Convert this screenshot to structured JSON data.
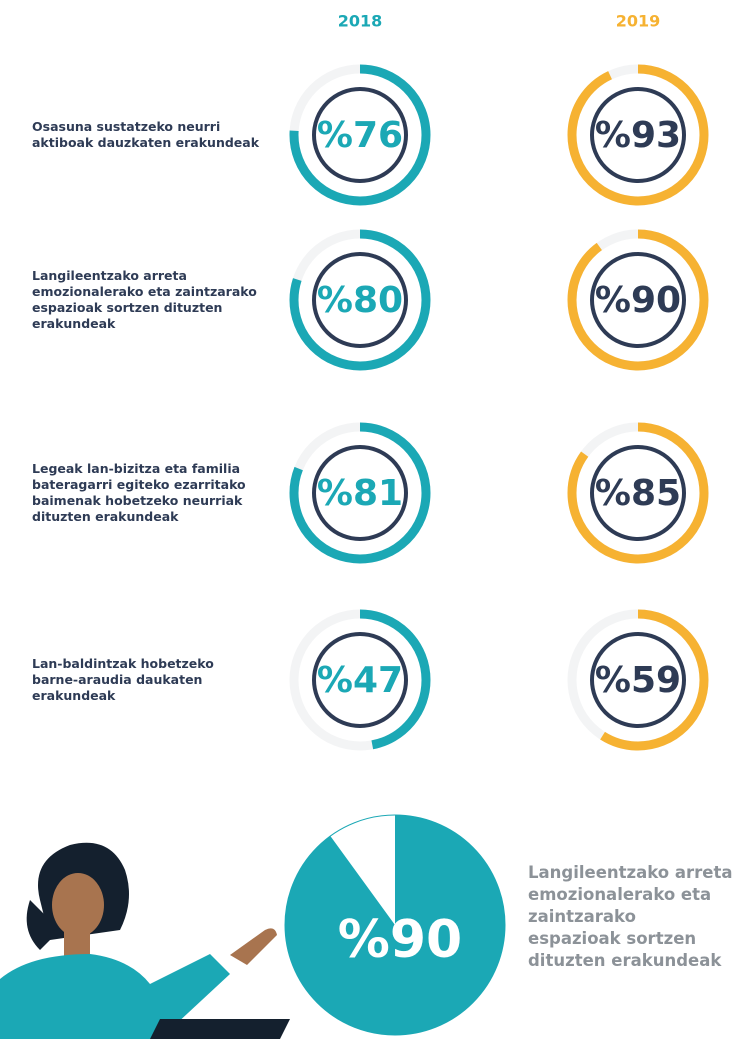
{
  "chart_data": [
    {
      "type": "radial",
      "categories": [
        "Osasuna sustatzeko neurri aktiboak dauzkaten erakundeak",
        "Langileentzako arreta emozionalerako eta zaintzarako espazioak sortzen dituzten erakundeak",
        "Legeak lan-bizitza eta familia bateragarri egiteko ezarritako baimenak hobetzeko neurriak dituzten erakundeak",
        "Lan-baldintzak hobetzeko barne-araudia daukaten erakundeak"
      ],
      "ylim": [
        0,
        100
      ],
      "series": [
        {
          "name": "2018",
          "color": "#1ba8b5",
          "values": [
            76,
            80,
            81,
            47
          ],
          "value_labels": [
            "%76",
            "%80",
            "%81",
            "%47"
          ]
        },
        {
          "name": "2019",
          "color": "#f6b232",
          "values": [
            93,
            90,
            85,
            59
          ],
          "value_labels": [
            "%93",
            "%90",
            "%85",
            "%59"
          ]
        }
      ]
    },
    {
      "type": "pie",
      "ylim": [
        0,
        100
      ],
      "color": "#1ba8b5",
      "values": [
        90
      ],
      "value_labels": [
        "%90"
      ],
      "caption": "Langileentzako arreta emozionalerako eta zaintzarako espazioak sortzen dituzten erakundeak"
    }
  ]
}
